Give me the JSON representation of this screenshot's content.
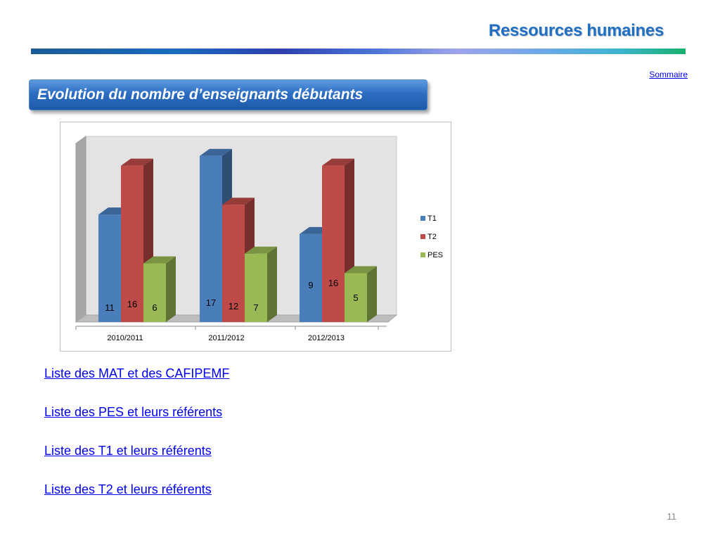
{
  "header": {
    "title": "Ressources humaines"
  },
  "nav": {
    "sommaire": "Sommaire"
  },
  "section": {
    "title": "Evolution du nombre d’enseignants débutants"
  },
  "chart_data": {
    "type": "bar",
    "categories": [
      "2010/2011",
      "2011/2012",
      "2012/2013"
    ],
    "series": [
      {
        "name": "T1",
        "values": [
          11,
          17,
          9
        ],
        "color": "#4a7ebb"
      },
      {
        "name": "T2",
        "values": [
          16,
          12,
          16
        ],
        "color": "#be4b48"
      },
      {
        "name": "PES",
        "values": [
          6,
          7,
          5
        ],
        "color": "#98b954"
      }
    ],
    "ylim": [
      0,
      18
    ],
    "legend": "right",
    "style": "3d-clustered-column",
    "grid": false
  },
  "links": [
    "Liste des MAT et des CAFIPEMF",
    "Liste des PES et leurs référents",
    "Liste des T1 et leurs référents",
    "Liste des T2 et leurs référents"
  ],
  "footer": {
    "page_number": "11"
  }
}
